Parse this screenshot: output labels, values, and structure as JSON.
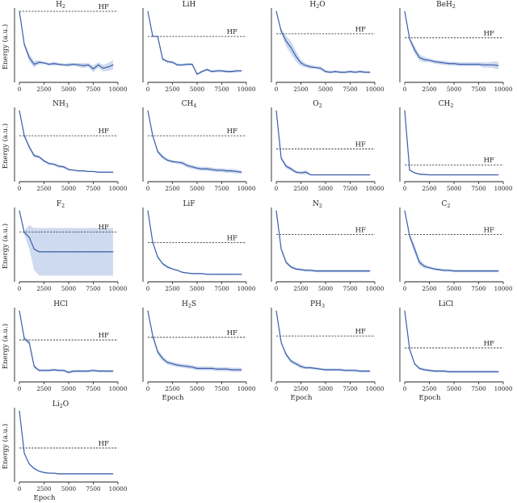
{
  "figure": {
    "hf_label": "HF",
    "x_label": "Epoch",
    "y_label": "Energy (a.u.)"
  },
  "colors": {
    "line": "#3b5ea8",
    "band": "#c5d3ec",
    "hf": "#222222",
    "axis": "#222222"
  },
  "chart_data": [
    {
      "type": "line",
      "title": "H",
      "subscript": "2",
      "hf": 1.0,
      "x": [
        0,
        500,
        1000,
        1500,
        2000,
        2500,
        3000,
        3500,
        4000,
        4500,
        5000,
        5500,
        6000,
        6500,
        7000,
        7500,
        8000,
        8500,
        9000,
        9500
      ],
      "y": [
        1.0,
        0.5,
        0.3,
        0.2,
        0.23,
        0.22,
        0.2,
        0.21,
        0.2,
        0.19,
        0.19,
        0.2,
        0.19,
        0.18,
        0.19,
        0.13,
        0.19,
        0.14,
        0.16,
        0.19
      ],
      "band": [
        0,
        0.03,
        0.06,
        0.05,
        0.03,
        0.02,
        0.02,
        0.03,
        0.02,
        0.02,
        0.03,
        0.02,
        0.03,
        0.04,
        0.03,
        0.05,
        0.04,
        0.05,
        0.06,
        0.07
      ],
      "xticks": [
        "0",
        "2500",
        "5000",
        "7500",
        "10000"
      ]
    },
    {
      "type": "line",
      "title": "LiH",
      "subscript": "",
      "hf": 0.62,
      "x": [
        0,
        500,
        1000,
        1500,
        2000,
        2500,
        3000,
        3500,
        4000,
        4500,
        5000,
        5500,
        6000,
        6500,
        7000,
        7500,
        8000,
        8500,
        9000,
        9500
      ],
      "y": [
        1.0,
        0.62,
        0.62,
        0.28,
        0.24,
        0.23,
        0.19,
        0.19,
        0.2,
        0.2,
        0.05,
        0.09,
        0.12,
        0.09,
        0.1,
        0.1,
        0.09,
        0.09,
        0.1,
        0.1
      ],
      "band": [
        0,
        0,
        0,
        0.02,
        0.02,
        0.02,
        0.02,
        0.02,
        0.02,
        0.02,
        0.02,
        0.02,
        0.02,
        0.02,
        0.02,
        0.02,
        0.02,
        0.02,
        0.02,
        0.02
      ],
      "xticks": [
        "0",
        "2500",
        "5000",
        "7500",
        "10000"
      ]
    },
    {
      "type": "line",
      "title": "H",
      "subscript": "2",
      "title_suffix": "O",
      "hf": 0.66,
      "x": [
        0,
        500,
        1000,
        1500,
        2000,
        2500,
        3000,
        3500,
        4000,
        4500,
        5000,
        5500,
        6000,
        6500,
        7000,
        7500,
        8000,
        8500,
        9000,
        9500
      ],
      "y": [
        1.0,
        0.7,
        0.55,
        0.45,
        0.32,
        0.22,
        0.18,
        0.16,
        0.15,
        0.14,
        0.09,
        0.08,
        0.09,
        0.08,
        0.08,
        0.09,
        0.08,
        0.09,
        0.08,
        0.08
      ],
      "band": [
        0,
        0.04,
        0.08,
        0.1,
        0.08,
        0.05,
        0.03,
        0.03,
        0.02,
        0.03,
        0.02,
        0.02,
        0.02,
        0.02,
        0.02,
        0.02,
        0.02,
        0.02,
        0.02,
        0.02
      ],
      "xticks": [
        "0",
        "2500",
        "5000",
        "7500",
        "10000"
      ]
    },
    {
      "type": "line",
      "title": "BeH",
      "subscript": "2",
      "hf": 0.6,
      "x": [
        0,
        500,
        1000,
        1500,
        2000,
        2500,
        3000,
        3500,
        4000,
        4500,
        5000,
        5500,
        6000,
        6500,
        7000,
        7500,
        8000,
        8500,
        9000,
        9500
      ],
      "y": [
        1.0,
        0.58,
        0.42,
        0.3,
        0.27,
        0.26,
        0.24,
        0.23,
        0.22,
        0.21,
        0.21,
        0.2,
        0.2,
        0.2,
        0.2,
        0.2,
        0.19,
        0.19,
        0.19,
        0.18
      ],
      "band": [
        0,
        0.03,
        0.06,
        0.05,
        0.04,
        0.03,
        0.03,
        0.03,
        0.03,
        0.03,
        0.03,
        0.03,
        0.03,
        0.03,
        0.03,
        0.03,
        0.04,
        0.04,
        0.05,
        0.06
      ],
      "xticks": [
        "0",
        "2500",
        "5000",
        "7500",
        "10000"
      ]
    },
    {
      "type": "line",
      "title": "NH",
      "subscript": "3",
      "hf": 0.62,
      "x": [
        0,
        500,
        1000,
        1500,
        2000,
        2500,
        3000,
        3500,
        4000,
        4500,
        5000,
        5500,
        6000,
        6500,
        7000,
        7500,
        8000,
        8500,
        9000,
        9500
      ],
      "y": [
        1.0,
        0.62,
        0.45,
        0.32,
        0.3,
        0.24,
        0.2,
        0.19,
        0.16,
        0.15,
        0.11,
        0.1,
        0.09,
        0.09,
        0.08,
        0.08,
        0.07,
        0.07,
        0.07,
        0.07
      ],
      "band": [
        0,
        0.03,
        0.03,
        0.03,
        0.02,
        0.02,
        0.02,
        0.02,
        0.02,
        0.02,
        0.02,
        0.01,
        0.01,
        0.01,
        0.01,
        0.01,
        0.01,
        0.01,
        0.01,
        0.01
      ],
      "xticks": [
        "0",
        "2500",
        "5000",
        "7500",
        "10000"
      ]
    },
    {
      "type": "line",
      "title": "CH",
      "subscript": "4",
      "hf": 0.62,
      "x": [
        0,
        500,
        1000,
        1500,
        2000,
        2500,
        3000,
        3500,
        4000,
        4500,
        5000,
        5500,
        6000,
        6500,
        7000,
        7500,
        8000,
        8500,
        9000,
        9500
      ],
      "y": [
        1.0,
        0.62,
        0.38,
        0.3,
        0.25,
        0.23,
        0.22,
        0.21,
        0.17,
        0.15,
        0.13,
        0.12,
        0.12,
        0.11,
        0.1,
        0.1,
        0.09,
        0.09,
        0.08,
        0.07
      ],
      "band": [
        0,
        0.02,
        0.03,
        0.03,
        0.02,
        0.02,
        0.02,
        0.03,
        0.03,
        0.03,
        0.03,
        0.03,
        0.03,
        0.03,
        0.03,
        0.03,
        0.03,
        0.03,
        0.03,
        0.02
      ],
      "xticks": [
        "0",
        "2500",
        "5000",
        "7500",
        "10000"
      ]
    },
    {
      "type": "line",
      "title": "O",
      "subscript": "2",
      "hf": 0.42,
      "x": [
        0,
        500,
        1000,
        1500,
        2000,
        2500,
        3000,
        3500,
        4000,
        4500,
        5000,
        5500,
        6000,
        6500,
        7000,
        7500,
        8000,
        8500,
        9000,
        9500
      ],
      "y": [
        1.0,
        0.28,
        0.16,
        0.12,
        0.07,
        0.06,
        0.07,
        0.03,
        0.03,
        0.03,
        0.03,
        0.03,
        0.03,
        0.03,
        0.03,
        0.03,
        0.03,
        0.03,
        0.03,
        0.03
      ],
      "band": [
        0,
        0.03,
        0.03,
        0.03,
        0.02,
        0.02,
        0.03,
        0.01,
        0.01,
        0.01,
        0.01,
        0.01,
        0.01,
        0.01,
        0.01,
        0.01,
        0.01,
        0.01,
        0.01,
        0.01
      ],
      "xticks": [
        "0",
        "2500",
        "5000",
        "7500",
        "10000"
      ]
    },
    {
      "type": "line",
      "title": "CH",
      "subscript": "2",
      "hf": 0.18,
      "x": [
        0,
        500,
        1000,
        1500,
        2000,
        2500,
        3000,
        3500,
        4000,
        4500,
        5000,
        5500,
        6000,
        6500,
        7000,
        7500,
        8000,
        8500,
        9000,
        9500
      ],
      "y": [
        1.0,
        0.1,
        0.06,
        0.04,
        0.035,
        0.03,
        0.03,
        0.03,
        0.03,
        0.03,
        0.03,
        0.03,
        0.03,
        0.03,
        0.03,
        0.03,
        0.03,
        0.03,
        0.03,
        0.03
      ],
      "band": [
        0,
        0.01,
        0.01,
        0.01,
        0.01,
        0.01,
        0.01,
        0.01,
        0.01,
        0.01,
        0.01,
        0.01,
        0.01,
        0.01,
        0.01,
        0.01,
        0.01,
        0.01,
        0.01,
        0.01
      ],
      "xticks": [
        "0",
        "2500",
        "5000",
        "7500",
        "10000"
      ]
    },
    {
      "type": "line",
      "title": "F",
      "subscript": "2",
      "hf": 0.68,
      "x": [
        0,
        500,
        1000,
        1500,
        2000,
        2500,
        3000,
        3500,
        4000,
        4500,
        5000,
        5500,
        6000,
        6500,
        7000,
        7500,
        8000,
        8500,
        9000,
        9500
      ],
      "y": [
        1.0,
        0.67,
        0.6,
        0.42,
        0.38,
        0.38,
        0.38,
        0.38,
        0.38,
        0.38,
        0.38,
        0.38,
        0.38,
        0.38,
        0.38,
        0.38,
        0.38,
        0.38,
        0.38,
        0.38
      ],
      "band": [
        0,
        0.03,
        0.18,
        0.32,
        0.36,
        0.36,
        0.36,
        0.36,
        0.36,
        0.36,
        0.36,
        0.36,
        0.36,
        0.36,
        0.36,
        0.36,
        0.36,
        0.36,
        0.36,
        0.36
      ],
      "xticks": [
        "0",
        "2500",
        "5000",
        "7500",
        "10000"
      ]
    },
    {
      "type": "line",
      "title": "LiF",
      "subscript": "",
      "hf": 0.52,
      "x": [
        0,
        500,
        1000,
        1500,
        2000,
        2500,
        3000,
        3500,
        4000,
        4500,
        5000,
        5500,
        6000,
        6500,
        7000,
        7500,
        8000,
        8500,
        9000,
        9500
      ],
      "y": [
        1.0,
        0.52,
        0.3,
        0.2,
        0.15,
        0.12,
        0.1,
        0.07,
        0.06,
        0.05,
        0.05,
        0.05,
        0.04,
        0.04,
        0.04,
        0.04,
        0.04,
        0.04,
        0.04,
        0.04
      ],
      "band": [
        0,
        0.02,
        0.02,
        0.02,
        0.02,
        0.01,
        0.01,
        0.01,
        0.01,
        0.01,
        0.01,
        0.01,
        0.01,
        0.01,
        0.01,
        0.01,
        0.01,
        0.01,
        0.01,
        0.01
      ],
      "xticks": [
        "0",
        "2500",
        "5000",
        "7500",
        "10000"
      ]
    },
    {
      "type": "line",
      "title": "N",
      "subscript": "2",
      "hf": 0.64,
      "x": [
        0,
        500,
        1000,
        1500,
        2000,
        2500,
        3000,
        3500,
        4000,
        4500,
        5000,
        5500,
        6000,
        6500,
        7000,
        7500,
        8000,
        8500,
        9000,
        9500
      ],
      "y": [
        1.0,
        0.42,
        0.22,
        0.15,
        0.12,
        0.11,
        0.1,
        0.1,
        0.09,
        0.09,
        0.09,
        0.09,
        0.09,
        0.09,
        0.09,
        0.09,
        0.09,
        0.09,
        0.09,
        0.09
      ],
      "band": [
        0,
        0.03,
        0.03,
        0.02,
        0.02,
        0.02,
        0.02,
        0.02,
        0.02,
        0.02,
        0.02,
        0.02,
        0.02,
        0.02,
        0.02,
        0.02,
        0.02,
        0.02,
        0.02,
        0.02
      ],
      "xticks": [
        "0",
        "2500",
        "5000",
        "7500",
        "10000"
      ]
    },
    {
      "type": "line",
      "title": "C",
      "subscript": "2",
      "hf": 0.64,
      "x": [
        0,
        500,
        1000,
        1500,
        2000,
        2500,
        3000,
        3500,
        4000,
        4500,
        5000,
        5500,
        6000,
        6500,
        7000,
        7500,
        8000,
        8500,
        9000,
        9500
      ],
      "y": [
        1.0,
        0.62,
        0.42,
        0.22,
        0.16,
        0.14,
        0.12,
        0.11,
        0.1,
        0.1,
        0.09,
        0.09,
        0.09,
        0.09,
        0.09,
        0.09,
        0.09,
        0.09,
        0.09,
        0.09
      ],
      "band": [
        0,
        0.04,
        0.07,
        0.05,
        0.03,
        0.02,
        0.02,
        0.02,
        0.02,
        0.02,
        0.02,
        0.02,
        0.02,
        0.02,
        0.02,
        0.02,
        0.02,
        0.02,
        0.02,
        0.02
      ],
      "xticks": [
        "0",
        "2500",
        "5000",
        "7500",
        "10000"
      ]
    },
    {
      "type": "line",
      "title": "HCl",
      "subscript": "",
      "hf": 0.56,
      "x": [
        0,
        500,
        1000,
        1500,
        2000,
        2500,
        3000,
        3500,
        4000,
        4500,
        5000,
        5500,
        6000,
        6500,
        7000,
        7500,
        8000,
        8500,
        9000,
        9500
      ],
      "y": [
        1.0,
        0.58,
        0.52,
        0.16,
        0.1,
        0.1,
        0.1,
        0.11,
        0.1,
        0.1,
        0.07,
        0.09,
        0.09,
        0.09,
        0.09,
        0.1,
        0.09,
        0.09,
        0.09,
        0.09
      ],
      "band": [
        0,
        0.03,
        0.03,
        0.03,
        0.02,
        0.02,
        0.02,
        0.02,
        0.02,
        0.02,
        0.02,
        0.02,
        0.02,
        0.02,
        0.02,
        0.02,
        0.02,
        0.02,
        0.02,
        0.02
      ],
      "xticks": [
        "0",
        "2500",
        "5000",
        "7500",
        "10000"
      ]
    },
    {
      "type": "line",
      "title": "H",
      "subscript": "2",
      "title_suffix": "S",
      "hf": 0.6,
      "x": [
        0,
        500,
        1000,
        1500,
        2000,
        2500,
        3000,
        3500,
        4000,
        4500,
        5000,
        5500,
        6000,
        6500,
        7000,
        7500,
        8000,
        8500,
        9000,
        9500
      ],
      "y": [
        1.0,
        0.62,
        0.38,
        0.28,
        0.22,
        0.2,
        0.18,
        0.17,
        0.16,
        0.15,
        0.13,
        0.13,
        0.13,
        0.13,
        0.12,
        0.12,
        0.12,
        0.11,
        0.11,
        0.11
      ],
      "band": [
        0,
        0.03,
        0.04,
        0.04,
        0.03,
        0.03,
        0.03,
        0.03,
        0.03,
        0.03,
        0.03,
        0.03,
        0.03,
        0.03,
        0.03,
        0.03,
        0.03,
        0.03,
        0.03,
        0.03
      ],
      "xticks": [
        "0",
        "2500",
        "5000",
        "7500",
        "10000"
      ]
    },
    {
      "type": "line",
      "title": "PH",
      "subscript": "3",
      "hf": 0.62,
      "x": [
        0,
        500,
        1000,
        1500,
        2000,
        2500,
        3000,
        3500,
        4000,
        4500,
        5000,
        5500,
        6000,
        6500,
        7000,
        7500,
        8000,
        8500,
        9000,
        9500
      ],
      "y": [
        1.0,
        0.52,
        0.34,
        0.24,
        0.2,
        0.16,
        0.14,
        0.14,
        0.13,
        0.12,
        0.11,
        0.11,
        0.11,
        0.11,
        0.1,
        0.1,
        0.1,
        0.09,
        0.09,
        0.09
      ],
      "band": [
        0,
        0.02,
        0.03,
        0.03,
        0.03,
        0.03,
        0.02,
        0.02,
        0.02,
        0.02,
        0.02,
        0.02,
        0.02,
        0.02,
        0.02,
        0.02,
        0.02,
        0.02,
        0.02,
        0.02
      ],
      "xticks": [
        "0",
        "2500",
        "5000",
        "7500",
        "10000"
      ]
    },
    {
      "type": "line",
      "title": "LiCl",
      "subscript": "",
      "hf": 0.44,
      "x": [
        0,
        500,
        1000,
        1500,
        2000,
        2500,
        3000,
        3500,
        4000,
        4500,
        5000,
        5500,
        6000,
        6500,
        7000,
        7500,
        8000,
        8500,
        9000,
        9500
      ],
      "y": [
        1.0,
        0.42,
        0.2,
        0.13,
        0.11,
        0.1,
        0.09,
        0.09,
        0.09,
        0.08,
        0.08,
        0.08,
        0.08,
        0.08,
        0.08,
        0.08,
        0.08,
        0.08,
        0.08,
        0.08
      ],
      "band": [
        0,
        0.02,
        0.02,
        0.02,
        0.02,
        0.02,
        0.02,
        0.02,
        0.02,
        0.02,
        0.02,
        0.02,
        0.02,
        0.02,
        0.02,
        0.02,
        0.02,
        0.02,
        0.02,
        0.02
      ],
      "xticks": [
        "0",
        "2500",
        "5000",
        "7500",
        "10000"
      ]
    },
    {
      "type": "line",
      "title": "Li",
      "subscript": "2",
      "title_suffix": "O",
      "hf": 0.44,
      "x": [
        0,
        500,
        1000,
        1500,
        2000,
        2500,
        3000,
        3500,
        4000,
        4500,
        5000,
        5500,
        6000,
        6500,
        7000,
        7500,
        8000,
        8500,
        9000,
        9500
      ],
      "y": [
        1.0,
        0.36,
        0.2,
        0.13,
        0.09,
        0.07,
        0.06,
        0.06,
        0.05,
        0.05,
        0.05,
        0.05,
        0.05,
        0.05,
        0.05,
        0.05,
        0.05,
        0.05,
        0.05,
        0.05
      ],
      "band": [
        0,
        0.01,
        0.01,
        0.01,
        0.01,
        0.01,
        0.01,
        0.01,
        0.01,
        0.01,
        0.01,
        0.01,
        0.01,
        0.01,
        0.01,
        0.01,
        0.01,
        0.01,
        0.01,
        0.01
      ],
      "xticks": [
        "0",
        "2500",
        "5000",
        "7500",
        "10000"
      ]
    }
  ]
}
